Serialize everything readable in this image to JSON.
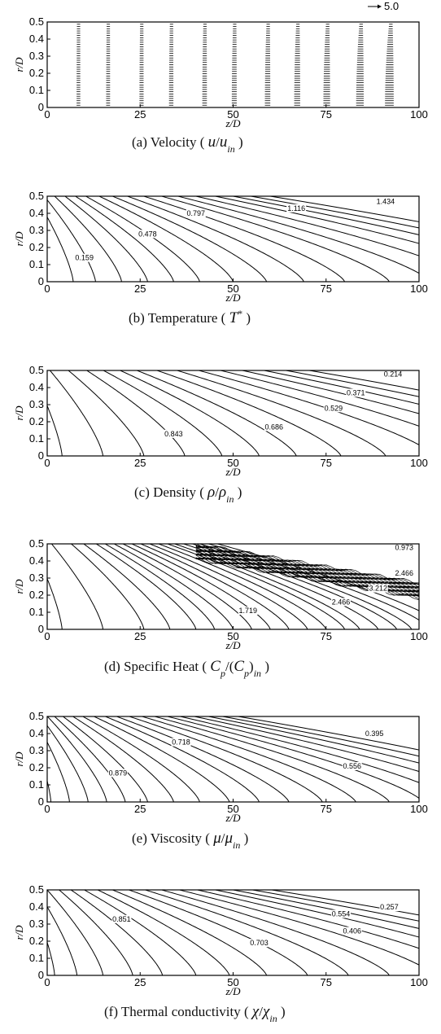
{
  "chart_data": [
    {
      "id": "a",
      "type": "vector-field",
      "caption": "(a) Velocity ( u/u_in )",
      "caption_parts": [
        "(a)  Velocity ( ",
        "u",
        "/",
        "u",
        "in",
        " )"
      ],
      "xlabel": "z/D",
      "ylabel": "r/D",
      "xlim": [
        0,
        100
      ],
      "ylim": [
        0,
        0.5
      ],
      "xticks": [
        "0",
        "25",
        "50",
        "75",
        "100"
      ],
      "yticks": [
        "0",
        "0.1",
        "0.2",
        "0.3",
        "0.4",
        "0.5"
      ],
      "reference_vector_label": "5.0",
      "station_z": [
        8,
        16,
        25,
        33,
        42,
        50,
        59,
        67,
        75,
        84,
        92
      ],
      "profile_bulge": [
        0.2,
        0.3,
        0.4,
        0.5,
        0.6,
        0.75,
        0.95,
        1.2,
        1.5,
        1.9,
        2.4
      ]
    },
    {
      "id": "b",
      "type": "contour",
      "caption": "(b) Temperature ( T* )",
      "caption_parts": [
        "(b)  Temperature ( ",
        "T",
        "*",
        " )"
      ],
      "xlabel": "z/D",
      "ylabel": "r/D",
      "xlim": [
        0,
        100
      ],
      "ylim": [
        0,
        0.5
      ],
      "xticks": [
        "0",
        "25",
        "50",
        "75",
        "100"
      ],
      "yticks": [
        "0",
        "0.1",
        "0.2",
        "0.3",
        "0.4",
        "0.5"
      ],
      "contour_labels": [
        "0.159",
        "0.478",
        "0.797",
        "1.116",
        "1.434"
      ]
    },
    {
      "id": "c",
      "type": "contour",
      "caption": "(c) Density ( ρ/ρ_in )",
      "caption_parts": [
        "(c)  Density ( ",
        "ρ",
        "/",
        "ρ",
        "in",
        " )"
      ],
      "xlabel": "z/D",
      "ylabel": "r/D",
      "xlim": [
        0,
        100
      ],
      "ylim": [
        0,
        0.5
      ],
      "xticks": [
        "0",
        "25",
        "50",
        "75",
        "100"
      ],
      "yticks": [
        "0",
        "0.1",
        "0.2",
        "0.3",
        "0.4",
        "0.5"
      ],
      "contour_labels": [
        "0.843",
        "0.686",
        "0.529",
        "0.371",
        "0.214"
      ]
    },
    {
      "id": "d",
      "type": "contour",
      "caption": "(d) Specific Heat ( C_p/(C_p)_in )",
      "caption_parts": [
        "(d)  Specific Heat ( ",
        "C",
        "p",
        "/(",
        "C",
        "p",
        ")",
        "in",
        " )"
      ],
      "xlabel": "z/D",
      "ylabel": "r/D",
      "xlim": [
        0,
        100
      ],
      "ylim": [
        0,
        0.5
      ],
      "xticks": [
        "0",
        "25",
        "50",
        "75",
        "100"
      ],
      "yticks": [
        "0",
        "0.1",
        "0.2",
        "0.3",
        "0.4",
        "0.5"
      ],
      "contour_labels": [
        "1.719",
        "2.466",
        "3.212",
        "2.466",
        "0.973"
      ]
    },
    {
      "id": "e",
      "type": "contour",
      "caption": "(e) Viscosity ( μ/μ_in )",
      "caption_parts": [
        "(e)  Viscosity ( ",
        "μ",
        "/",
        "μ",
        "in",
        " )"
      ],
      "xlabel": "z/D",
      "ylabel": "r/D",
      "xlim": [
        0,
        100
      ],
      "ylim": [
        0,
        0.5
      ],
      "xticks": [
        "0",
        "25",
        "50",
        "75",
        "100"
      ],
      "yticks": [
        "0",
        "0.1",
        "0.2",
        "0.3",
        "0.4",
        "0.5"
      ],
      "contour_labels": [
        "0.879",
        "0.718",
        "0.556",
        "0.395"
      ]
    },
    {
      "id": "f",
      "type": "contour",
      "caption": "(f) Thermal conductivity ( χ/χ_in )",
      "caption_parts": [
        "(f)  Thermal conductivity ( ",
        "χ",
        "/",
        "χ",
        "in",
        " )"
      ],
      "xlabel": "z/D",
      "ylabel": "r/D",
      "xlim": [
        0,
        100
      ],
      "ylim": [
        0,
        0.5
      ],
      "xticks": [
        "0",
        "25",
        "50",
        "75",
        "100"
      ],
      "yticks": [
        "0",
        "0.1",
        "0.2",
        "0.3",
        "0.4",
        "0.5"
      ],
      "contour_labels": [
        "0.851",
        "0.703",
        "0.554",
        "0.406",
        "0.257"
      ]
    }
  ]
}
